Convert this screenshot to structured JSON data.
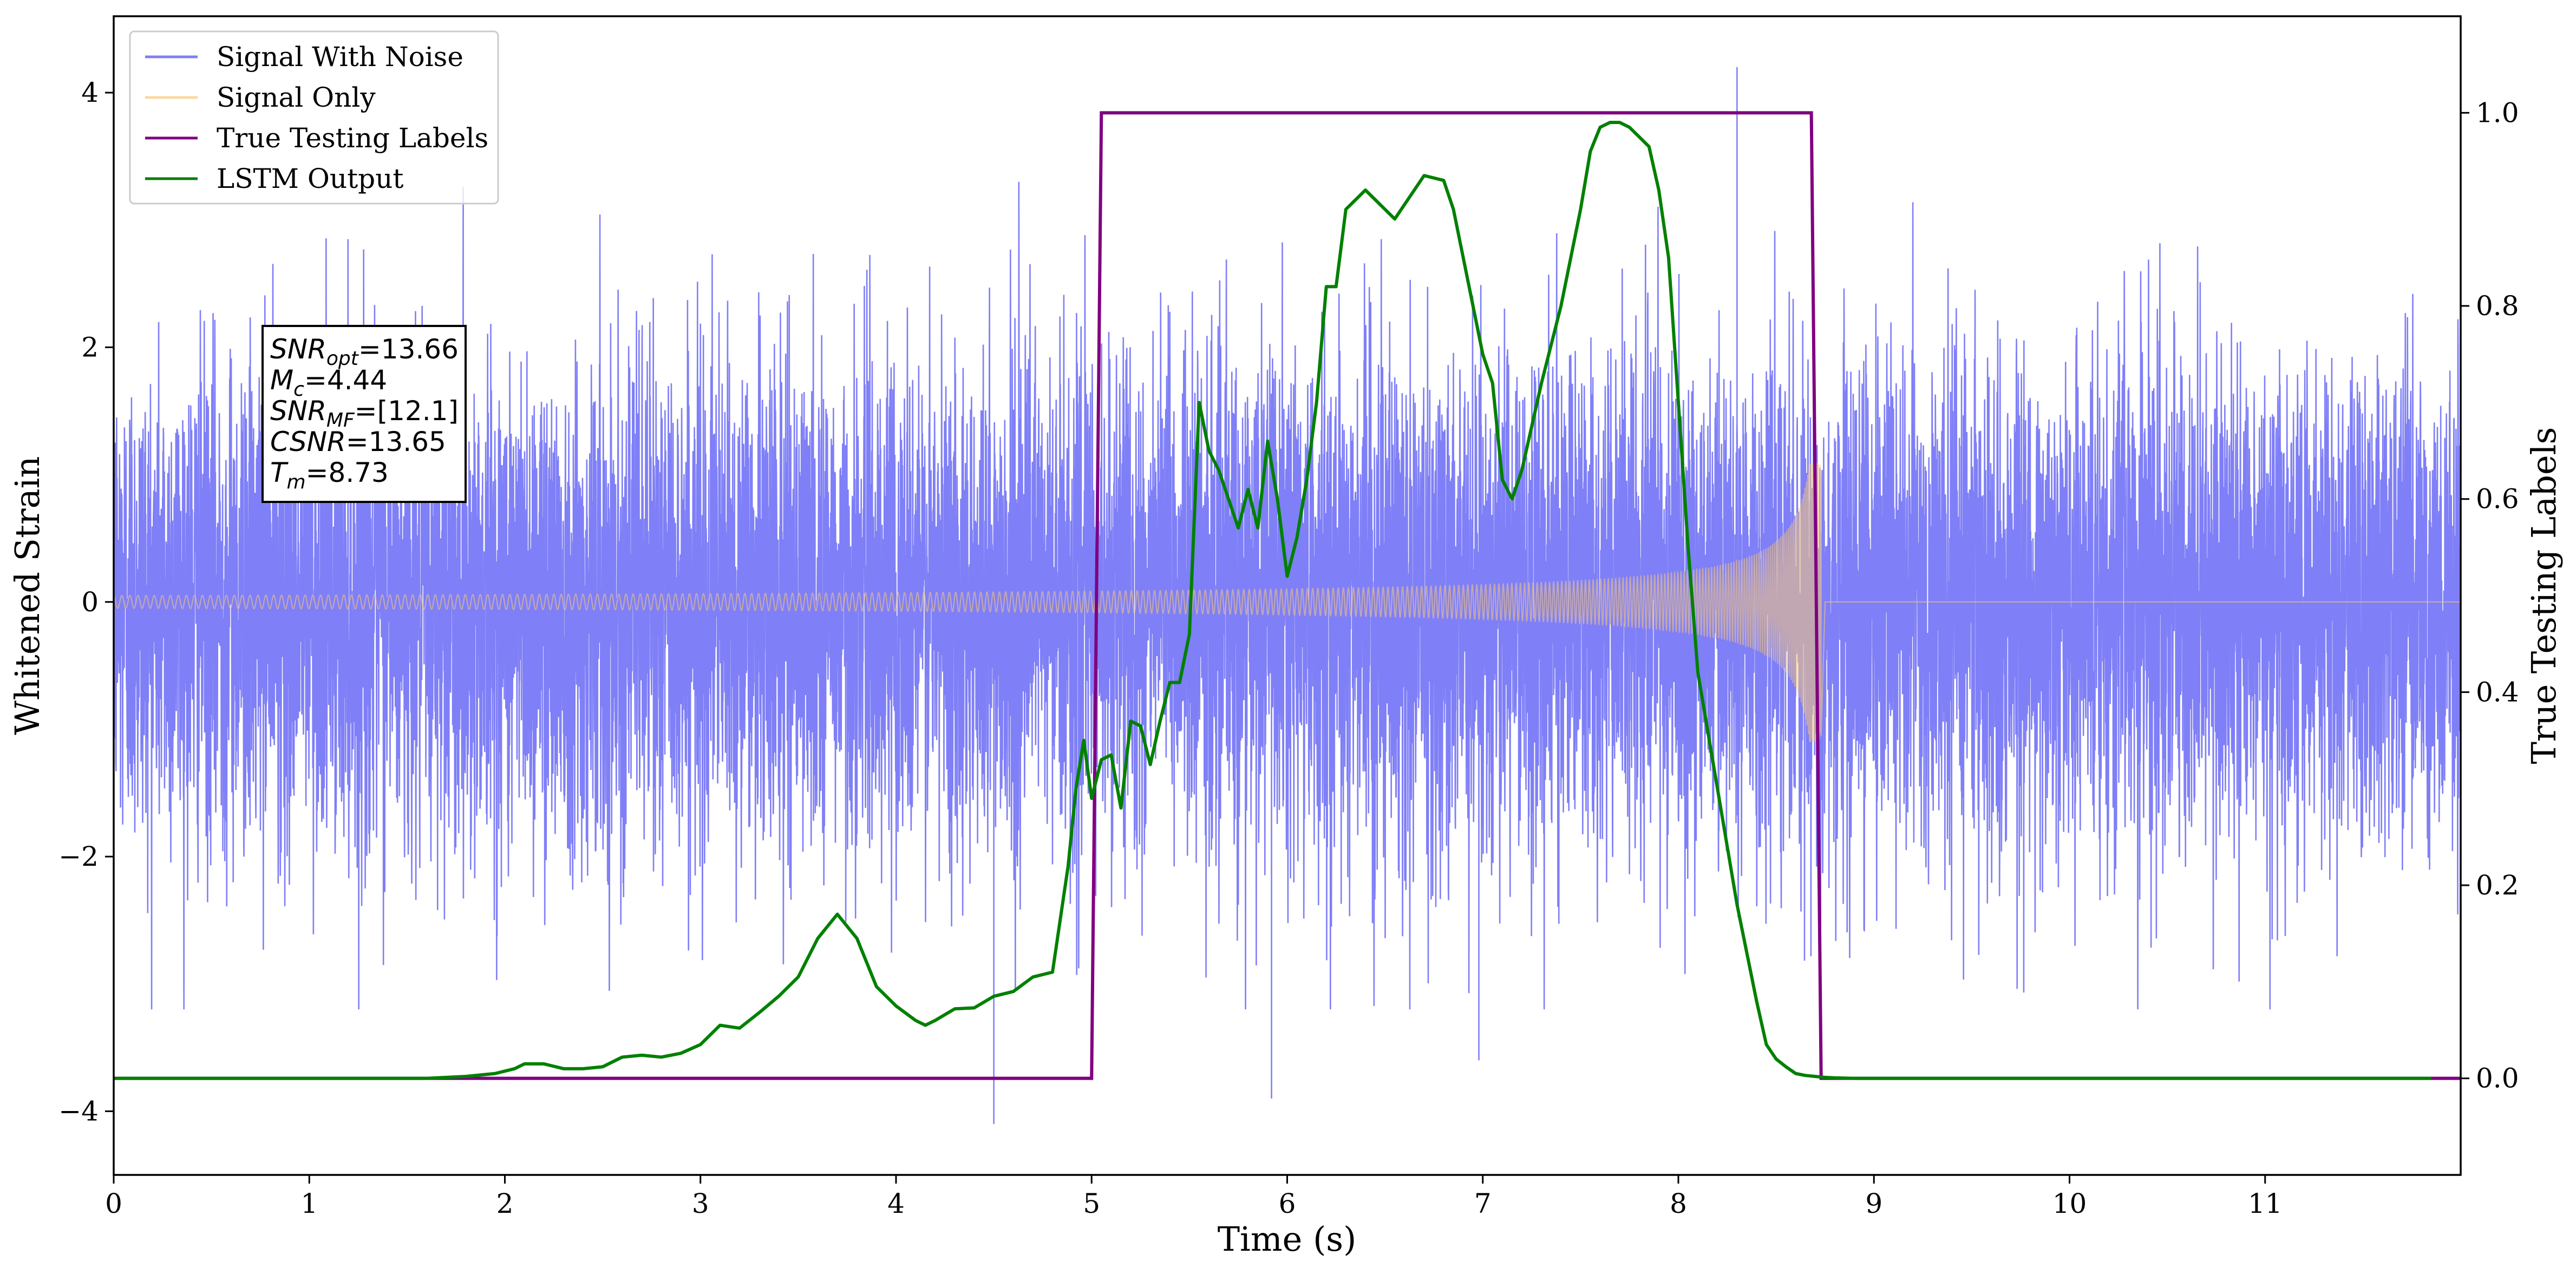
{
  "chart_data": {
    "type": "line",
    "title": "",
    "xlabel": "Time (s)",
    "ylabel": "Whitened Strain",
    "y2label": "True Testing Labels",
    "xlim": [
      0,
      12
    ],
    "ylim": [
      -4.5,
      4.6
    ],
    "y2lim": [
      -0.1,
      1.1
    ],
    "xticks": [
      0,
      1,
      2,
      3,
      4,
      5,
      6,
      7,
      8,
      9,
      10,
      11
    ],
    "yticks": [
      -4,
      -2,
      0,
      2,
      4
    ],
    "yticklabels": [
      "−4",
      "−2",
      "0",
      "2",
      "4"
    ],
    "y2ticks": [
      0.0,
      0.2,
      0.4,
      0.6,
      0.8,
      1.0
    ],
    "y2ticklabels": [
      "0.0",
      "0.2",
      "0.4",
      "0.6",
      "0.8",
      "1.0"
    ],
    "grid": false,
    "legend_position": "top-left",
    "series": [
      {
        "name": "Signal With Noise",
        "color": "#7f7ff7",
        "axis": "left",
        "description_type": "noise",
        "noise_sigma": 0.95,
        "duration": 12,
        "samples": 12000,
        "spikes": [
          {
            "x": 8.3,
            "y": 4.2
          },
          {
            "x": 4.5,
            "y": -4.1
          },
          {
            "x": 5.92,
            "y": -3.9
          },
          {
            "x": 6.98,
            "y": -3.6
          }
        ]
      },
      {
        "name": "Signal Only",
        "color": "#f7c97a",
        "axis": "left",
        "description_type": "chirp",
        "amplitude_start": 0.05,
        "amplitude_peak": 1.1,
        "merger_time": 8.73,
        "after_merger_value": 0.0
      },
      {
        "name": "True Testing Labels",
        "color": "#800080",
        "axis": "right",
        "x": [
          0,
          5.0,
          5.05,
          8.68,
          8.73,
          12.0
        ],
        "y": [
          0,
          0,
          1,
          1,
          0,
          0
        ]
      },
      {
        "name": "LSTM Output",
        "color": "#008000",
        "axis": "right",
        "x": [
          0,
          0.2,
          0.4,
          0.6,
          0.8,
          1.0,
          1.2,
          1.4,
          1.6,
          1.8,
          1.95,
          2.05,
          2.1,
          2.2,
          2.3,
          2.4,
          2.5,
          2.6,
          2.7,
          2.8,
          2.9,
          3.0,
          3.1,
          3.2,
          3.3,
          3.4,
          3.5,
          3.6,
          3.7,
          3.8,
          3.9,
          4.0,
          4.1,
          4.15,
          4.2,
          4.3,
          4.4,
          4.5,
          4.6,
          4.7,
          4.8,
          4.88,
          4.92,
          4.96,
          5.0,
          5.05,
          5.1,
          5.15,
          5.2,
          5.25,
          5.3,
          5.35,
          5.4,
          5.45,
          5.5,
          5.55,
          5.6,
          5.65,
          5.7,
          5.75,
          5.8,
          5.85,
          5.9,
          5.95,
          6.0,
          6.05,
          6.1,
          6.15,
          6.2,
          6.25,
          6.3,
          6.4,
          6.5,
          6.55,
          6.6,
          6.7,
          6.8,
          6.85,
          6.9,
          6.95,
          7.0,
          7.05,
          7.1,
          7.15,
          7.2,
          7.3,
          7.4,
          7.5,
          7.55,
          7.6,
          7.65,
          7.7,
          7.75,
          7.8,
          7.85,
          7.9,
          7.95,
          8.0,
          8.05,
          8.1,
          8.2,
          8.3,
          8.4,
          8.45,
          8.5,
          8.55,
          8.6,
          8.65,
          8.7,
          8.75,
          8.8,
          8.9,
          9.0,
          9.5,
          10.0,
          10.5,
          11.0,
          11.5,
          11.85
        ],
        "y": [
          0,
          0,
          0,
          0,
          0,
          0,
          0,
          0,
          0,
          0.002,
          0.005,
          0.01,
          0.015,
          0.015,
          0.01,
          0.01,
          0.012,
          0.022,
          0.024,
          0.022,
          0.026,
          0.035,
          0.055,
          0.052,
          0.068,
          0.085,
          0.105,
          0.145,
          0.17,
          0.145,
          0.095,
          0.075,
          0.06,
          0.055,
          0.06,
          0.072,
          0.073,
          0.085,
          0.09,
          0.105,
          0.11,
          0.22,
          0.3,
          0.35,
          0.29,
          0.33,
          0.335,
          0.28,
          0.37,
          0.365,
          0.325,
          0.37,
          0.41,
          0.41,
          0.46,
          0.7,
          0.65,
          0.63,
          0.6,
          0.57,
          0.61,
          0.57,
          0.66,
          0.6,
          0.52,
          0.56,
          0.62,
          0.7,
          0.82,
          0.82,
          0.9,
          0.92,
          0.9,
          0.89,
          0.905,
          0.935,
          0.93,
          0.9,
          0.85,
          0.8,
          0.75,
          0.72,
          0.62,
          0.6,
          0.63,
          0.72,
          0.8,
          0.9,
          0.96,
          0.985,
          0.99,
          0.99,
          0.985,
          0.975,
          0.965,
          0.92,
          0.85,
          0.7,
          0.55,
          0.42,
          0.3,
          0.18,
          0.08,
          0.035,
          0.02,
          0.012,
          0.005,
          0.003,
          0.002,
          0.001,
          0.0005,
          0,
          0,
          0,
          0,
          0,
          0,
          0,
          0
        ]
      }
    ],
    "annotation": {
      "lines": [
        {
          "sym": "SNR",
          "sub": "opt",
          "value": "=13.66"
        },
        {
          "sym": "M",
          "sub": "c",
          "value": "=4.44"
        },
        {
          "sym": "SNR",
          "sub": "MF",
          "value": "=[12.1]"
        },
        {
          "sym": "CSNR",
          "sub": "",
          "value": "=13.65"
        },
        {
          "sym": "T",
          "sub": "m",
          "value": "=8.73"
        }
      ]
    }
  }
}
